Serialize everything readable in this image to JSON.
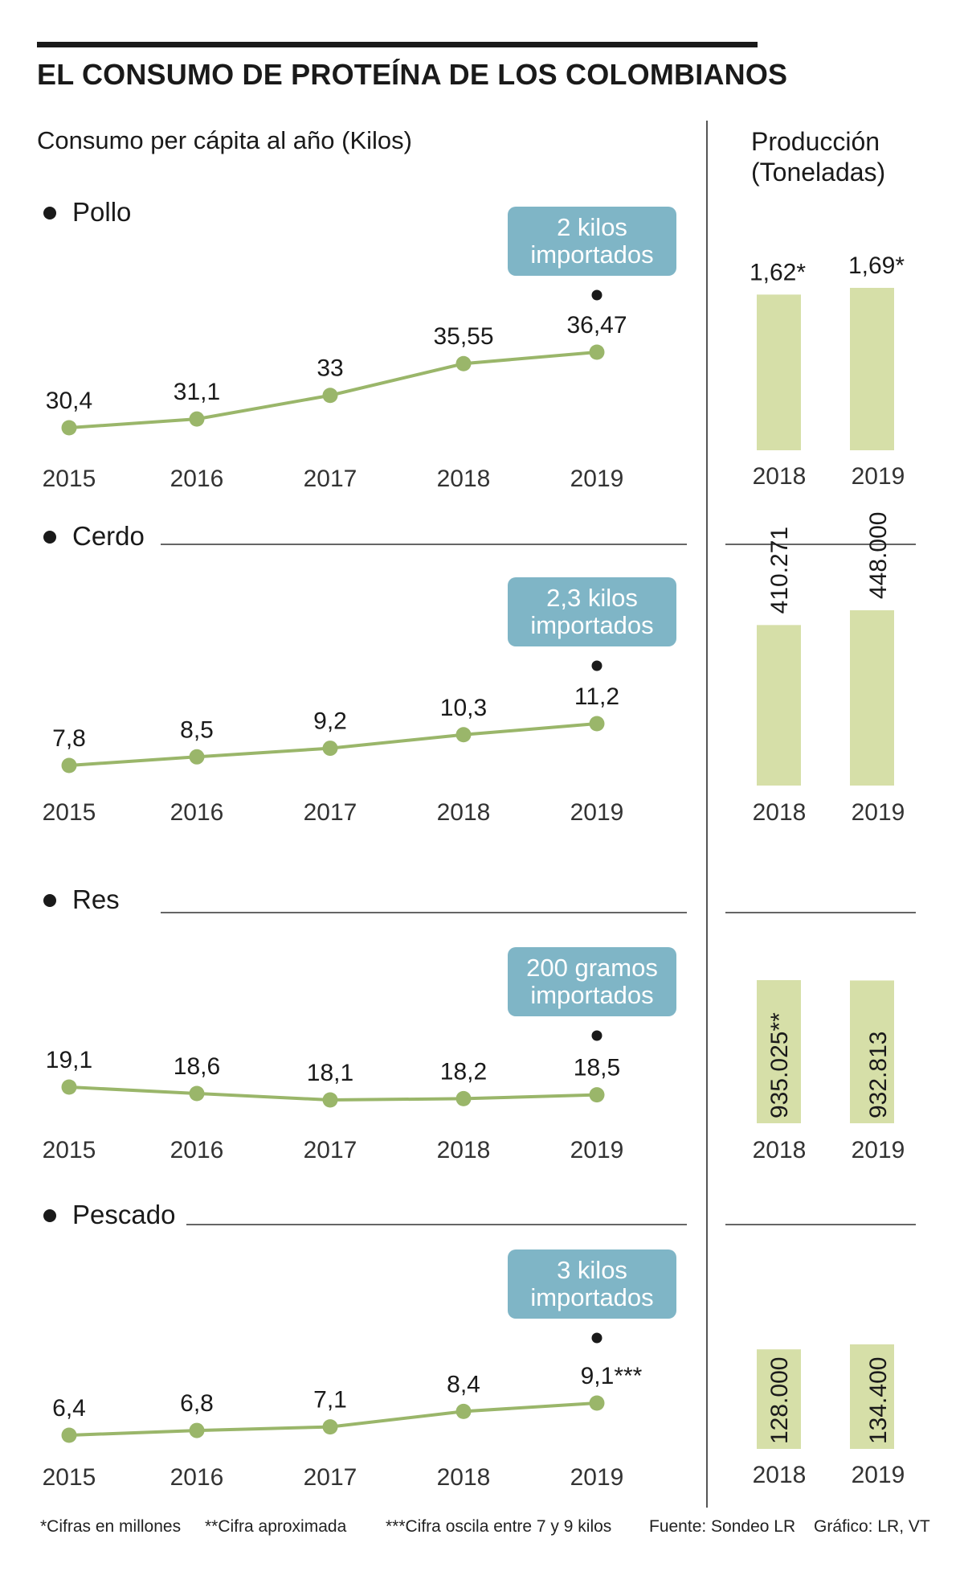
{
  "title": "EL CONSUMO DE PROTEÍNA DE LOS COLOMBIANOS",
  "subtitle": "Consumo per cápita al año (Kilos)",
  "production_title_line1": "Producción",
  "production_title_line2": "(Toneladas)",
  "colors": {
    "line": "#9ab66a",
    "bar": "#d6dfa8",
    "callout": "#7fb5c6",
    "text": "#1a1a1a"
  },
  "footnotes": {
    "note1": "*Cifras en millones",
    "note2": "**Cifra aproximada",
    "note3": "***Cifra oscila entre 7 y 9 kilos",
    "source": "Fuente: Sondeo LR",
    "credit": "Gráfico: LR, VT"
  },
  "chart_data": [
    {
      "type": "line",
      "series_name": "Pollo",
      "x": [
        "2015",
        "2016",
        "2017",
        "2018",
        "2019"
      ],
      "values": [
        30.4,
        31.1,
        33,
        35.55,
        36.47
      ],
      "value_labels": [
        "30,4",
        "31,1",
        "33",
        "35,55",
        "36,47"
      ],
      "callout_line1": "2 kilos",
      "callout_line2": "importados",
      "production": {
        "type": "bar",
        "categories": [
          "2018",
          "2019"
        ],
        "values": [
          1.62,
          1.69
        ],
        "value_labels": [
          "1,62*",
          "1,69*"
        ],
        "label_orientation": "horizontal"
      }
    },
    {
      "type": "line",
      "series_name": "Cerdo",
      "x": [
        "2015",
        "2016",
        "2017",
        "2018",
        "2019"
      ],
      "values": [
        7.8,
        8.5,
        9.2,
        10.3,
        11.2
      ],
      "value_labels": [
        "7,8",
        "8,5",
        "9,2",
        "10,3",
        "11,2"
      ],
      "callout_line1": "2,3 kilos",
      "callout_line2": "importados",
      "production": {
        "type": "bar",
        "categories": [
          "2018",
          "2019"
        ],
        "values": [
          410271,
          448000
        ],
        "value_labels": [
          "410.271",
          "448.000"
        ],
        "label_orientation": "vertical"
      }
    },
    {
      "type": "line",
      "series_name": "Res",
      "x": [
        "2015",
        "2016",
        "2017",
        "2018",
        "2019"
      ],
      "values": [
        19.1,
        18.6,
        18.1,
        18.2,
        18.5
      ],
      "value_labels": [
        "19,1",
        "18,6",
        "18,1",
        "18,2",
        "18,5"
      ],
      "callout_line1": "200 gramos",
      "callout_line2": "importados",
      "production": {
        "type": "bar",
        "categories": [
          "2018",
          "2019"
        ],
        "values": [
          935025,
          932813
        ],
        "value_labels": [
          "935.025**",
          "932.813"
        ],
        "label_orientation": "vertical"
      }
    },
    {
      "type": "line",
      "series_name": "Pescado",
      "x": [
        "2015",
        "2016",
        "2017",
        "2018",
        "2019"
      ],
      "values": [
        6.4,
        6.8,
        7.1,
        8.4,
        9.1
      ],
      "value_labels": [
        "6,4",
        "6,8",
        "7,1",
        "8,4",
        "9,1***"
      ],
      "callout_line1": "3 kilos",
      "callout_line2": "importados",
      "production": {
        "type": "bar",
        "categories": [
          "2018",
          "2019"
        ],
        "values": [
          128000,
          134400
        ],
        "value_labels": [
          "128.000",
          "134.400"
        ],
        "label_orientation": "vertical"
      }
    }
  ]
}
